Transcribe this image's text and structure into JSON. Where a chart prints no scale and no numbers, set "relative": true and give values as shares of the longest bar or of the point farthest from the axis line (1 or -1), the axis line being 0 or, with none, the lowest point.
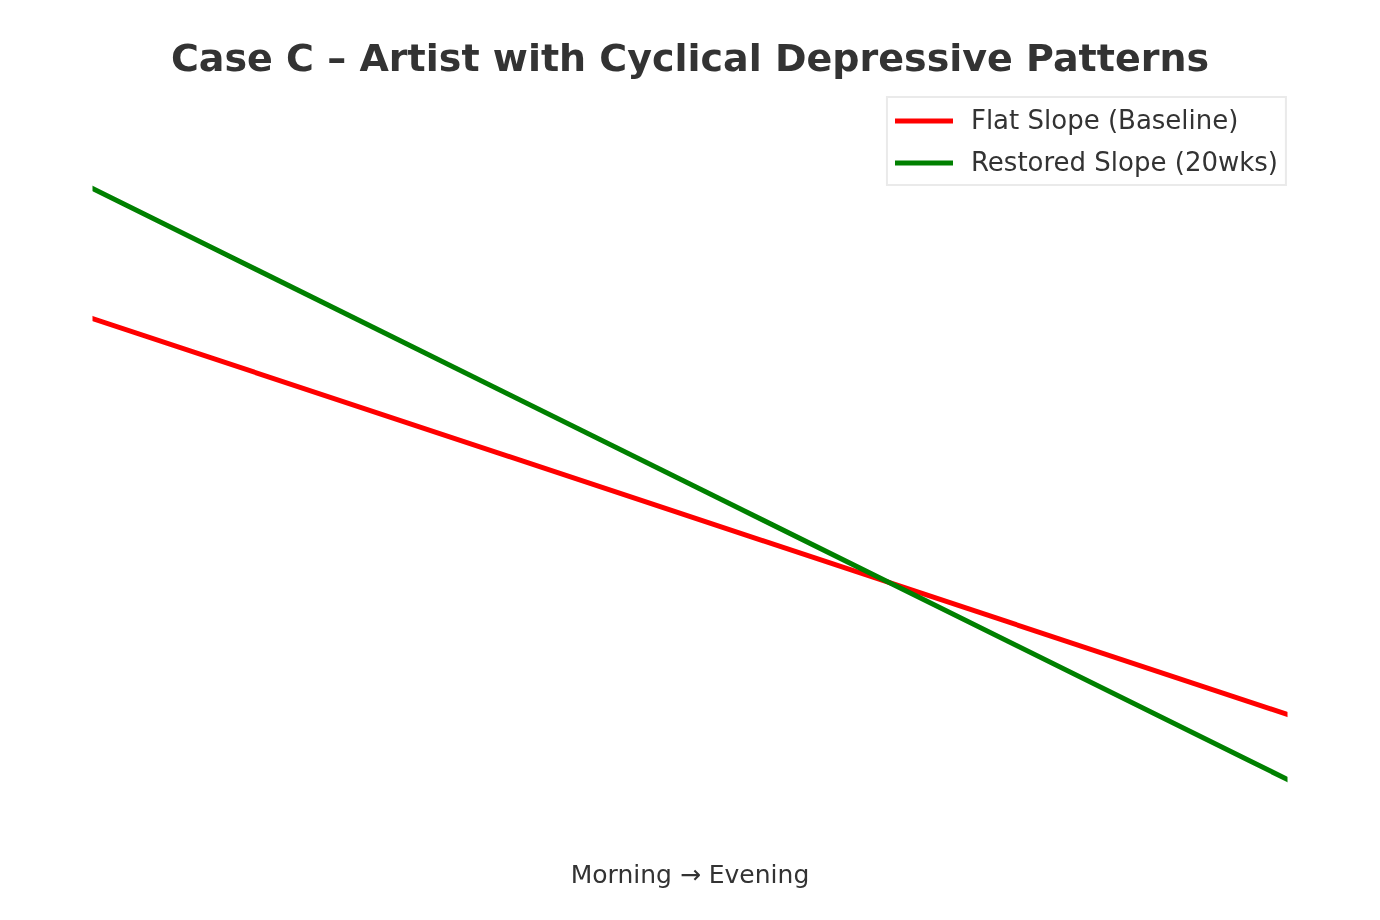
{
  "chart_data": {
    "type": "line",
    "title": "Case C – Artist with Cyclical Depressive Patterns",
    "xlabel": "Morning → Evening",
    "categories": [
      null,
      null
    ],
    "relative": true,
    "series": [
      {
        "name": "Flat Slope (Baseline)",
        "color": "#ff0000",
        "values": [
          0.78,
          0.11
        ]
      },
      {
        "name": "Restored Slope (20wks)",
        "color": "#008000",
        "values": [
          1,
          0
        ]
      }
    ],
    "legend": "top right"
  }
}
